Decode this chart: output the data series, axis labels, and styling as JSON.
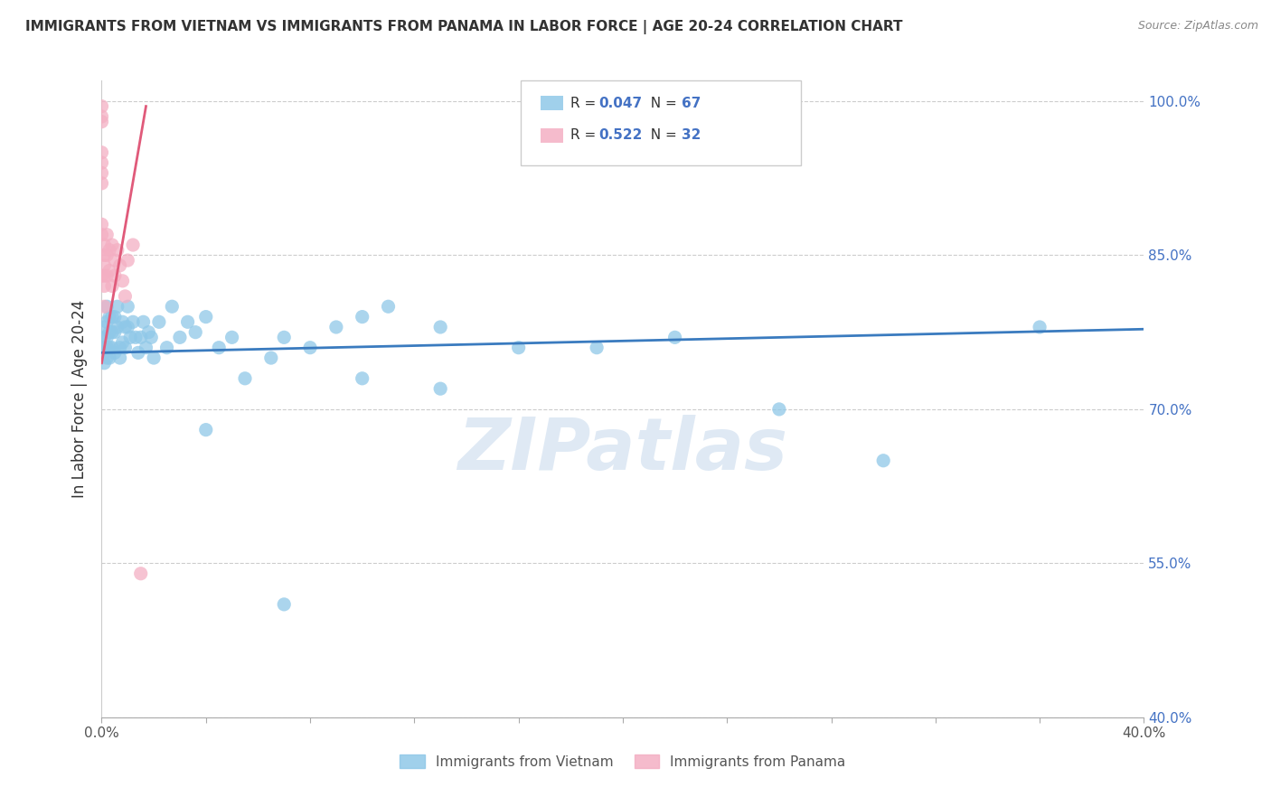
{
  "title": "IMMIGRANTS FROM VIETNAM VS IMMIGRANTS FROM PANAMA IN LABOR FORCE | AGE 20-24 CORRELATION CHART",
  "source": "Source: ZipAtlas.com",
  "ylabel_label": "In Labor Force | Age 20-24",
  "x_min": 0.0,
  "x_max": 0.4,
  "y_min": 0.4,
  "y_max": 1.02,
  "x_ticks": [
    0.0,
    0.04,
    0.08,
    0.12,
    0.16,
    0.2,
    0.24,
    0.28,
    0.32,
    0.36,
    0.4
  ],
  "x_ticklabels": [
    "0.0%",
    "",
    "",
    "",
    "",
    "",
    "",
    "",
    "",
    "",
    "40.0%"
  ],
  "y_ticks": [
    0.4,
    0.55,
    0.7,
    0.85,
    1.0
  ],
  "y_ticklabels": [
    "40.0%",
    "55.0%",
    "70.0%",
    "85.0%",
    "100.0%"
  ],
  "vietnam_R": 0.047,
  "vietnam_N": 67,
  "panama_R": 0.522,
  "panama_N": 32,
  "vietnam_color": "#8fc8e8",
  "panama_color": "#f4afc3",
  "vietnam_line_color": "#3a7bbf",
  "panama_line_color": "#e05a7a",
  "watermark": "ZIPatlas",
  "legend_vietnam_label": "Immigrants from Vietnam",
  "legend_panama_label": "Immigrants from Panama",
  "vietnam_x": [
    0.001,
    0.001,
    0.001,
    0.001,
    0.001,
    0.002,
    0.002,
    0.002,
    0.002,
    0.002,
    0.003,
    0.003,
    0.003,
    0.003,
    0.004,
    0.004,
    0.004,
    0.005,
    0.005,
    0.005,
    0.006,
    0.006,
    0.007,
    0.007,
    0.008,
    0.008,
    0.009,
    0.009,
    0.01,
    0.01,
    0.011,
    0.012,
    0.013,
    0.014,
    0.015,
    0.016,
    0.017,
    0.018,
    0.019,
    0.02,
    0.022,
    0.025,
    0.027,
    0.03,
    0.033,
    0.036,
    0.04,
    0.045,
    0.05,
    0.055,
    0.065,
    0.07,
    0.08,
    0.09,
    0.1,
    0.11,
    0.13,
    0.16,
    0.19,
    0.22,
    0.26,
    0.3,
    0.36,
    0.1,
    0.04,
    0.13,
    0.07
  ],
  "vietnam_y": [
    0.78,
    0.77,
    0.76,
    0.755,
    0.745,
    0.8,
    0.785,
    0.77,
    0.76,
    0.75,
    0.79,
    0.775,
    0.76,
    0.75,
    0.79,
    0.775,
    0.76,
    0.79,
    0.775,
    0.755,
    0.8,
    0.78,
    0.76,
    0.75,
    0.785,
    0.765,
    0.78,
    0.76,
    0.8,
    0.78,
    0.77,
    0.785,
    0.77,
    0.755,
    0.77,
    0.785,
    0.76,
    0.775,
    0.77,
    0.75,
    0.785,
    0.76,
    0.8,
    0.77,
    0.785,
    0.775,
    0.79,
    0.76,
    0.77,
    0.73,
    0.75,
    0.77,
    0.76,
    0.78,
    0.79,
    0.8,
    0.78,
    0.76,
    0.76,
    0.77,
    0.7,
    0.65,
    0.78,
    0.73,
    0.68,
    0.72,
    0.51
  ],
  "panama_x": [
    0.0,
    0.0,
    0.0,
    0.0,
    0.0,
    0.0,
    0.0,
    0.0,
    0.0,
    0.0,
    0.001,
    0.001,
    0.001,
    0.001,
    0.001,
    0.001,
    0.002,
    0.002,
    0.002,
    0.003,
    0.003,
    0.004,
    0.004,
    0.005,
    0.005,
    0.006,
    0.007,
    0.008,
    0.009,
    0.01,
    0.012,
    0.015
  ],
  "panama_y": [
    0.995,
    0.985,
    0.98,
    0.95,
    0.94,
    0.93,
    0.92,
    0.88,
    0.87,
    0.83,
    0.86,
    0.85,
    0.84,
    0.83,
    0.82,
    0.8,
    0.87,
    0.85,
    0.83,
    0.855,
    0.835,
    0.86,
    0.82,
    0.845,
    0.83,
    0.855,
    0.84,
    0.825,
    0.81,
    0.845,
    0.86,
    0.54
  ]
}
